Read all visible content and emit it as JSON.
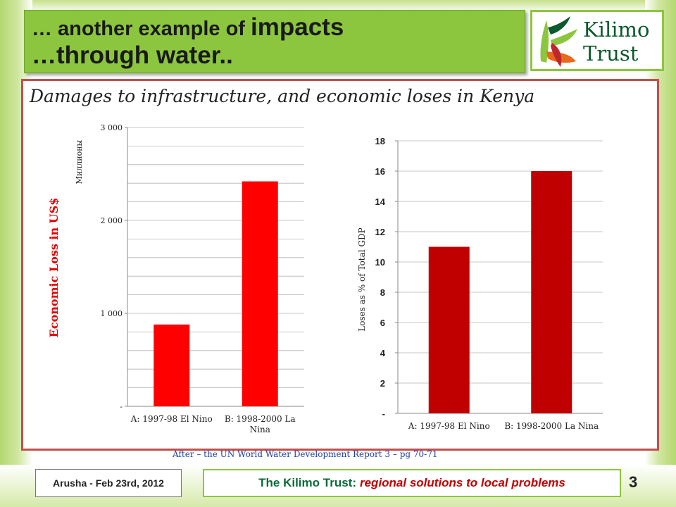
{
  "slide": {
    "title_part1": "… another example of ",
    "title_part2": "impacts",
    "title_line2": "…through  water..",
    "subtitle": "Damages to infrastructure,  and  economic loses in Kenya",
    "caption": "After – the UN World Water Development Report 3 – pg 70-71",
    "footer_left": "Arusha - Feb 23rd, 2012",
    "footer_main": "The Kilimo Trust:",
    "footer_emph": "regional solutions to local problems",
    "page_number": "3"
  },
  "logo": {
    "line1": "Kilimo",
    "line2": "Trust",
    "icon": "kilimo-leaf-icon",
    "colors": {
      "green": "#0a5a2c",
      "lime": "#8cc63f",
      "orange": "#e8681c",
      "red": "#c0272d"
    }
  },
  "colors": {
    "accent_green": "#8cc63f",
    "frame_red": "#c0504d",
    "bar_left": "#ff0000",
    "bar_right": "#c00000"
  },
  "chart_data": [
    {
      "type": "bar",
      "categories": [
        "A: 1997-98 El Nino",
        "B: 1998-2000 La Nina"
      ],
      "category_lines": [
        [
          "A: 1997-98 El Nino"
        ],
        [
          "B: 1998-2000 La",
          "Nina"
        ]
      ],
      "values": [
        880,
        2420
      ],
      "ylim": [
        0,
        3000
      ],
      "yticks": [
        0,
        1000,
        2000,
        3000
      ],
      "yticklabels": [
        "-",
        "1 000",
        "2 000",
        "3 000"
      ],
      "minor_step": 200,
      "ylabel": "Economic Loss in US$",
      "unit_label": "Миллионы",
      "xlabel": "",
      "grid": true,
      "legend": "none"
    },
    {
      "type": "bar",
      "categories": [
        "A: 1997-98 El Nino",
        "B: 1998-2000 La Nina"
      ],
      "values": [
        11,
        16
      ],
      "ylim": [
        0,
        18
      ],
      "yticks": [
        0,
        2,
        4,
        6,
        8,
        10,
        12,
        14,
        16,
        18
      ],
      "yticklabels": [
        "-",
        "2",
        "4",
        "6",
        "8",
        "10",
        "12",
        "14",
        "16",
        "18"
      ],
      "ylabel": "Loses as % of Total GDP",
      "xlabel": "",
      "grid": true,
      "legend": "none"
    }
  ]
}
